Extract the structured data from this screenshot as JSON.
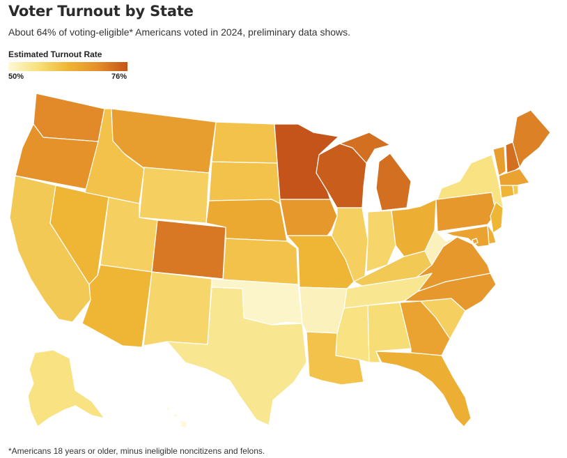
{
  "header": {
    "title": "Voter Turnout by State",
    "subtitle": "About 64% of voting-eligible* Americans voted in 2024, preliminary data shows."
  },
  "legend": {
    "title": "Estimated Turnout Rate",
    "min_label": "50%",
    "max_label": "76%",
    "min_value": 50,
    "max_value": 76,
    "colors": [
      "#fdf9d9",
      "#f8e07a",
      "#efb535",
      "#e48f2a",
      "#c4541a"
    ]
  },
  "footnote": "*Americans 18 years or older, minus ineligible noncitizens and felons.",
  "states": [
    {
      "code": "WA",
      "turnout": 70
    },
    {
      "code": "OR",
      "turnout": 69
    },
    {
      "code": "CA",
      "turnout": 60
    },
    {
      "code": "NV",
      "turnout": 63
    },
    {
      "code": "ID",
      "turnout": 61
    },
    {
      "code": "MT",
      "turnout": 67
    },
    {
      "code": "WY",
      "turnout": 59
    },
    {
      "code": "UT",
      "turnout": 59
    },
    {
      "code": "AZ",
      "turnout": 63
    },
    {
      "code": "CO",
      "turnout": 72
    },
    {
      "code": "NM",
      "turnout": 58
    },
    {
      "code": "ND",
      "turnout": 61
    },
    {
      "code": "SD",
      "turnout": 61
    },
    {
      "code": "NE",
      "turnout": 65
    },
    {
      "code": "KS",
      "turnout": 61
    },
    {
      "code": "OK",
      "turnout": 51
    },
    {
      "code": "TX",
      "turnout": 55
    },
    {
      "code": "MN",
      "turnout": 76
    },
    {
      "code": "IA",
      "turnout": 68
    },
    {
      "code": "MO",
      "turnout": 63
    },
    {
      "code": "AR",
      "turnout": 52
    },
    {
      "code": "LA",
      "turnout": 61
    },
    {
      "code": "WI",
      "turnout": 75
    },
    {
      "code": "IL",
      "turnout": 59
    },
    {
      "code": "MI",
      "turnout": 73
    },
    {
      "code": "IN",
      "turnout": 58
    },
    {
      "code": "OH",
      "turnout": 64
    },
    {
      "code": "KY",
      "turnout": 60
    },
    {
      "code": "TN",
      "turnout": 55
    },
    {
      "code": "MS",
      "turnout": 56
    },
    {
      "code": "AL",
      "turnout": 57
    },
    {
      "code": "GA",
      "turnout": 66
    },
    {
      "code": "FL",
      "turnout": 64
    },
    {
      "code": "SC",
      "turnout": 59
    },
    {
      "code": "NC",
      "turnout": 68
    },
    {
      "code": "VA",
      "turnout": 68
    },
    {
      "code": "WV",
      "turnout": 52
    },
    {
      "code": "PA",
      "turnout": 68
    },
    {
      "code": "NY",
      "turnout": 56
    },
    {
      "code": "VT",
      "turnout": 67
    },
    {
      "code": "NH",
      "turnout": 73
    },
    {
      "code": "ME",
      "turnout": 71
    },
    {
      "code": "MA",
      "turnout": 66
    },
    {
      "code": "CT",
      "turnout": 63
    },
    {
      "code": "RI",
      "turnout": 60
    },
    {
      "code": "NJ",
      "turnout": 63
    },
    {
      "code": "DE",
      "turnout": 64
    },
    {
      "code": "MD",
      "turnout": 66
    },
    {
      "code": "DC",
      "turnout": 66
    },
    {
      "code": "AK",
      "turnout": 56
    },
    {
      "code": "HI",
      "turnout": 50
    }
  ]
}
